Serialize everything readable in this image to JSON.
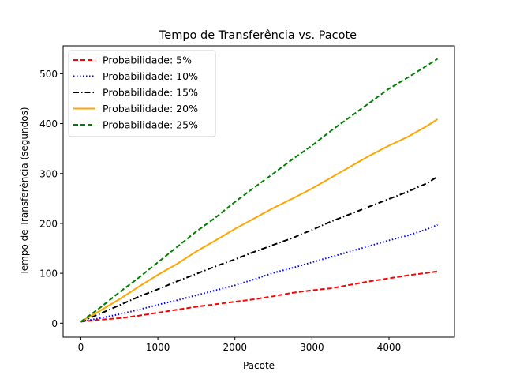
{
  "chart_data": {
    "type": "line",
    "title": "Tempo de Transferência vs. Pacote",
    "xlabel": "Pacote",
    "ylabel": "Tempo de Transferência (segundos)",
    "xlim": [
      -230,
      4850
    ],
    "ylim": [
      -28,
      556
    ],
    "xticks": [
      0,
      1000,
      2000,
      3000,
      4000
    ],
    "yticks": [
      0,
      100,
      200,
      300,
      400,
      500
    ],
    "grid": false,
    "legend_position": "upper-left",
    "series": [
      {
        "name": "Probabilidade: 5%",
        "color": "#ff0000",
        "linestyle": "dashed",
        "x": [
          0,
          250,
          500,
          750,
          1000,
          1250,
          1500,
          1750,
          2000,
          2250,
          2500,
          2750,
          3000,
          3250,
          3500,
          3750,
          4000,
          4250,
          4500,
          4630
        ],
        "y": [
          3,
          7,
          10,
          15,
          21,
          27,
          33,
          38,
          43,
          48,
          54,
          61,
          66,
          70,
          77,
          84,
          90,
          96,
          101,
          104
        ]
      },
      {
        "name": "Probabilidade: 10%",
        "color": "#0000ff",
        "linestyle": "dotted",
        "x": [
          0,
          250,
          500,
          750,
          1000,
          1250,
          1500,
          1750,
          2000,
          2250,
          2500,
          2750,
          3000,
          3250,
          3500,
          3750,
          4000,
          4250,
          4500,
          4630
        ],
        "y": [
          3,
          10,
          18,
          27,
          37,
          46,
          56,
          66,
          76,
          88,
          101,
          111,
          122,
          133,
          144,
          155,
          166,
          176,
          189,
          197
        ]
      },
      {
        "name": "Probabilidade: 15%",
        "color": "#000000",
        "linestyle": "dashdot",
        "x": [
          0,
          250,
          500,
          750,
          1000,
          1250,
          1500,
          1750,
          2000,
          2250,
          2500,
          2750,
          3000,
          3250,
          3500,
          3750,
          4000,
          4250,
          4500,
          4630
        ],
        "y": [
          3,
          19,
          36,
          53,
          68,
          84,
          99,
          114,
          128,
          143,
          157,
          171,
          187,
          204,
          219,
          234,
          249,
          264,
          281,
          294
        ]
      },
      {
        "name": "Probabilidade: 20%",
        "color": "#ffa500",
        "linestyle": "solid",
        "x": [
          0,
          250,
          500,
          750,
          1000,
          1250,
          1500,
          1750,
          2000,
          2250,
          2500,
          2750,
          3000,
          3250,
          3500,
          3750,
          4000,
          4250,
          4500,
          4630
        ],
        "y": [
          3,
          25,
          48,
          73,
          97,
          119,
          144,
          166,
          189,
          210,
          231,
          250,
          270,
          292,
          314,
          336,
          356,
          374,
          396,
          409
        ]
      },
      {
        "name": "Probabilidade: 25%",
        "color": "#008000",
        "linestyle": "dashed",
        "x": [
          0,
          250,
          500,
          750,
          1000,
          1250,
          1500,
          1750,
          2000,
          2250,
          2500,
          2750,
          3000,
          3250,
          3500,
          3750,
          4000,
          4250,
          4500,
          4630
        ],
        "y": [
          3,
          31,
          62,
          91,
          122,
          153,
          184,
          212,
          243,
          272,
          300,
          329,
          356,
          386,
          414,
          442,
          470,
          493,
          517,
          530
        ]
      }
    ]
  }
}
